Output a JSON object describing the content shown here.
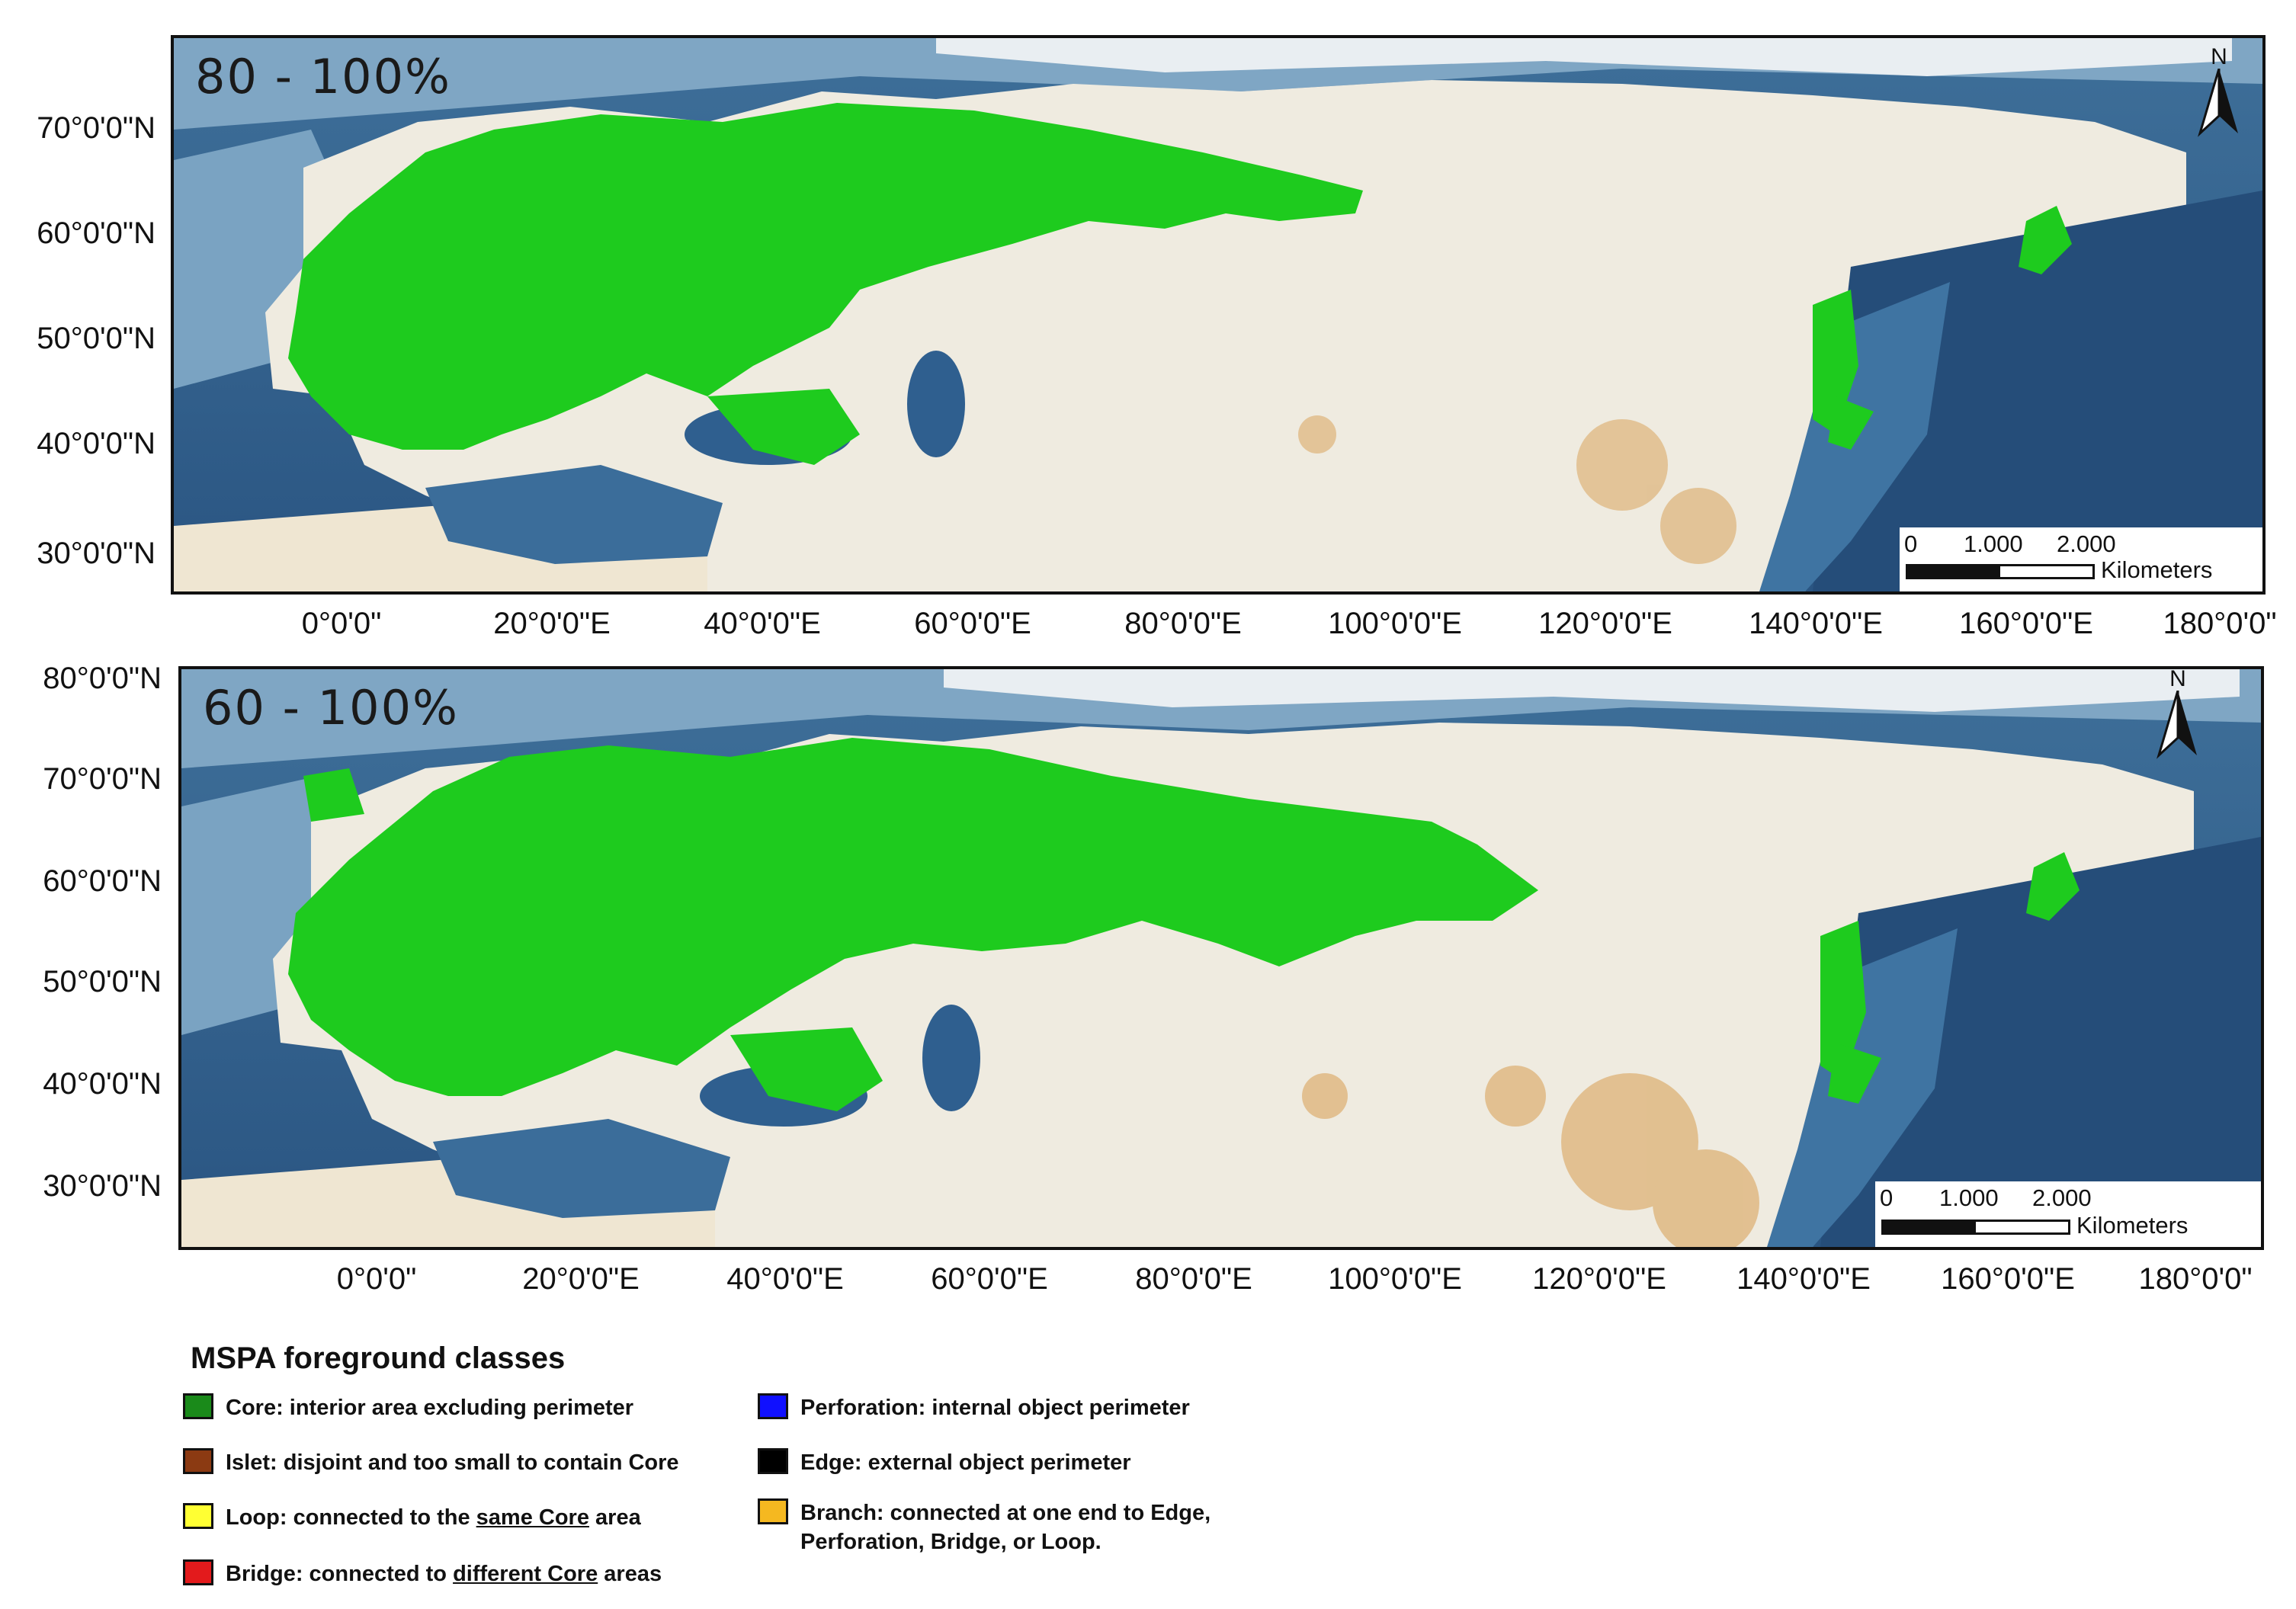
{
  "panels": [
    {
      "range_label": "80 - 100%",
      "north_label": "N",
      "scale": {
        "ticks": [
          "0",
          "1.000",
          "2.000"
        ],
        "unit": "Kilometers"
      },
      "lat_labels": [
        "70°0'0\"N",
        "60°0'0\"N",
        "50°0'0\"N",
        "40°0'0\"N",
        "30°0'0\"N"
      ],
      "lon_labels": [
        "0°0'0\"",
        "20°0'0\"E",
        "40°0'0\"E",
        "60°0'0\"E",
        "80°0'0\"E",
        "100°0'0\"E",
        "120°0'0\"E",
        "140°0'0\"E",
        "160°0'0\"E",
        "180°0'0\""
      ]
    },
    {
      "range_label": "60 - 100%",
      "north_label": "N",
      "scale": {
        "ticks": [
          "0",
          "1.000",
          "2.000"
        ],
        "unit": "Kilometers"
      },
      "lat_labels": [
        "80°0'0\"N",
        "70°0'0\"N",
        "60°0'0\"N",
        "50°0'0\"N",
        "40°0'0\"N",
        "30°0'0\"N"
      ],
      "lon_labels": [
        "0°0'0\"",
        "20°0'0\"E",
        "40°0'0\"E",
        "60°0'0\"E",
        "80°0'0\"E",
        "100°0'0\"E",
        "120°0'0\"E",
        "140°0'0\"E",
        "160°0'0\"E",
        "180°0'0\""
      ]
    }
  ],
  "colors": {
    "ocean_deep": "#2b5a86",
    "ocean_shallow": "#8fb3cf",
    "land": "#efebe0",
    "core_green": "#1ecb1e",
    "ice": "#f3f6f8"
  },
  "legend": {
    "title": "MSPA foreground classes",
    "items": [
      {
        "color": "#1a8a1a",
        "parts": [
          {
            "t": "Core: interior area excluding perimeter"
          }
        ]
      },
      {
        "color": "#8b3a12",
        "parts": [
          {
            "t": "Islet: disjoint and too small to contain Core"
          }
        ]
      },
      {
        "color": "#ffff33",
        "parts": [
          {
            "t": "Loop: connected to the "
          },
          {
            "t": "same Core",
            "u": true
          },
          {
            "t": " area"
          }
        ]
      },
      {
        "color": "#e31a1c",
        "parts": [
          {
            "t": "Bridge: connected to "
          },
          {
            "t": "different Core",
            "u": true
          },
          {
            "t": " areas"
          }
        ]
      },
      {
        "color": "#1010ff",
        "parts": [
          {
            "t": "Perforation: internal object perimeter"
          }
        ]
      },
      {
        "color": "#000000",
        "parts": [
          {
            "t": "Edge: external object perimeter"
          }
        ]
      },
      {
        "color": "#f5b820",
        "parts": [
          {
            "t": "Branch: connected at one end to Edge,"
          },
          {
            "br": true
          },
          {
            "t": "Perforation, Bridge, or Loop."
          }
        ]
      }
    ]
  }
}
